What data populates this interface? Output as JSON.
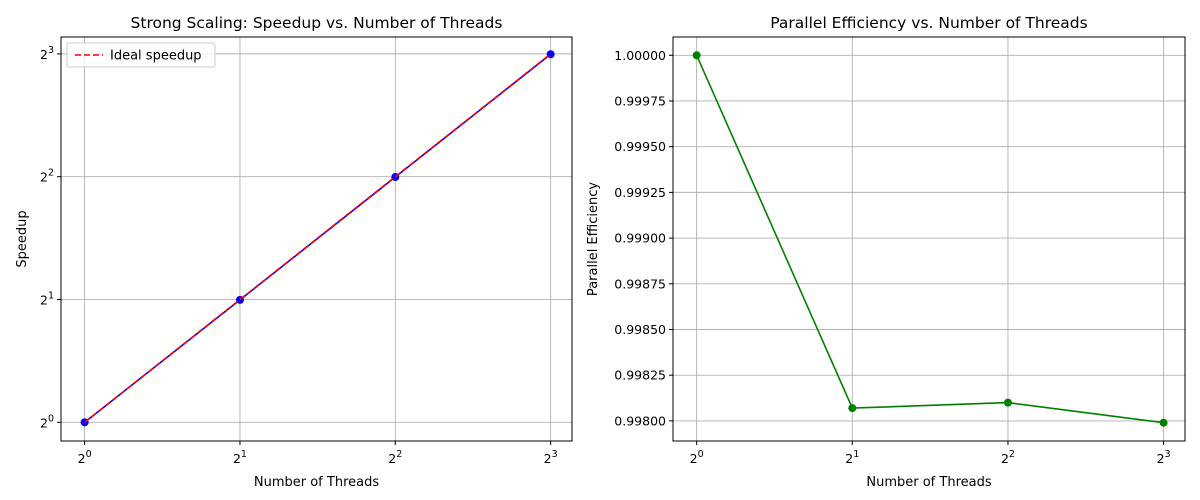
{
  "chart_data": [
    {
      "type": "line",
      "title": "Strong Scaling: Speedup vs. Number of Threads",
      "xlabel": "Number of Threads",
      "ylabel": "Speedup",
      "xscale": "log2",
      "yscale": "log2",
      "xlim": [
        0.9,
        8.8
      ],
      "ylim": [
        0.9,
        8.8
      ],
      "x_ticks": [
        {
          "base": "2",
          "exp": "0",
          "value": 1
        },
        {
          "base": "2",
          "exp": "1",
          "value": 2
        },
        {
          "base": "2",
          "exp": "2",
          "value": 4
        },
        {
          "base": "2",
          "exp": "3",
          "value": 8
        }
      ],
      "y_ticks": [
        {
          "base": "2",
          "exp": "0",
          "value": 1
        },
        {
          "base": "2",
          "exp": "1",
          "value": 2
        },
        {
          "base": "2",
          "exp": "2",
          "value": 4
        },
        {
          "base": "2",
          "exp": "3",
          "value": 8
        }
      ],
      "grid": true,
      "legend_position": "top-left",
      "series": [
        {
          "x": [
            1,
            2,
            4,
            8
          ],
          "y": [
            1,
            1.9961,
            3.9924,
            7.9839
          ],
          "color": "#0000ff",
          "style": "solid",
          "marker": "circle"
        },
        {
          "name": "Ideal speedup",
          "x": [
            1,
            2,
            4,
            8
          ],
          "y": [
            1,
            2,
            4,
            8
          ],
          "color": "#ff0000",
          "style": "dashed",
          "marker": "none"
        }
      ]
    },
    {
      "type": "line",
      "title": "Parallel Efficiency vs. Number of Threads",
      "xlabel": "Number of Threads",
      "ylabel": "Parallel Efficiency",
      "xscale": "log2",
      "yscale": "linear",
      "xlim": [
        0.9,
        8.8
      ],
      "ylim": [
        0.99789,
        1.0001
      ],
      "x_ticks": [
        {
          "base": "2",
          "exp": "0",
          "value": 1
        },
        {
          "base": "2",
          "exp": "1",
          "value": 2
        },
        {
          "base": "2",
          "exp": "2",
          "value": 4
        },
        {
          "base": "2",
          "exp": "3",
          "value": 8
        }
      ],
      "y_ticks": [
        {
          "label": "1.00000",
          "value": 1.0
        },
        {
          "label": "0.99975",
          "value": 0.99975
        },
        {
          "label": "0.99950",
          "value": 0.9995
        },
        {
          "label": "0.99925",
          "value": 0.99925
        },
        {
          "label": "0.99900",
          "value": 0.999
        },
        {
          "label": "0.99875",
          "value": 0.99875
        },
        {
          "label": "0.99850",
          "value": 0.9985
        },
        {
          "label": "0.99825",
          "value": 0.99825
        },
        {
          "label": "0.99800",
          "value": 0.998
        }
      ],
      "grid": true,
      "series": [
        {
          "x": [
            1,
            2,
            4,
            8
          ],
          "y": [
            1.0,
            0.99807,
            0.9981,
            0.99799
          ],
          "color": "#008000",
          "style": "solid",
          "marker": "circle"
        }
      ]
    }
  ]
}
